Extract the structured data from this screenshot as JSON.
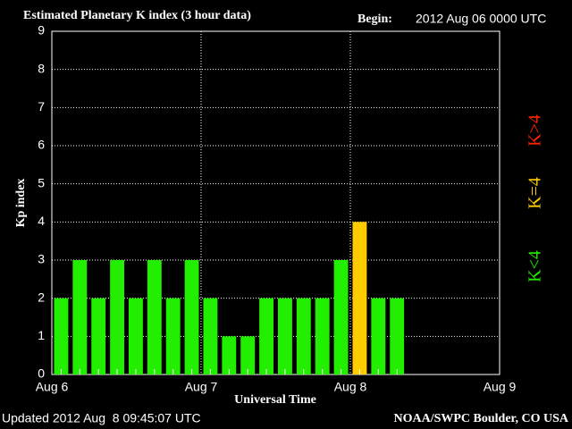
{
  "chart_data": {
    "type": "bar",
    "title": "Estimated Planetary K index (3 hour data)",
    "begin_label": "Begin:",
    "begin_value": "2012 Aug 06 0000 UTC",
    "y_label": "Kp index",
    "x_label": "Universal Time",
    "updated": "Updated 2012 Aug  8 09:45:07 UTC",
    "credit": "NOAA/SWPC Boulder, CO USA",
    "categories": [
      null,
      null,
      null,
      null,
      null,
      null,
      null,
      null,
      null,
      null,
      null,
      null,
      null,
      null,
      null,
      null,
      null,
      null,
      null
    ],
    "day_labels": [
      "Aug 6",
      "Aug 7",
      "Aug 8",
      "Aug 9"
    ],
    "series": [
      {
        "name": "Kp",
        "values": [
          2,
          3,
          2,
          3,
          2,
          3,
          2,
          3,
          2,
          1,
          1,
          2,
          2,
          2,
          2,
          3,
          4,
          2,
          2
        ],
        "colors": [
          "#22ee00",
          "#22ee00",
          "#22ee00",
          "#22ee00",
          "#22ee00",
          "#22ee00",
          "#22ee00",
          "#22ee00",
          "#22ee00",
          "#22ee00",
          "#22ee00",
          "#22ee00",
          "#22ee00",
          "#22ee00",
          "#22ee00",
          "#22ee00",
          "#ffcc00",
          "#22ee00",
          "#22ee00"
        ]
      }
    ],
    "legend": [
      {
        "label": "K<4",
        "color": "#22ee00"
      },
      {
        "label": "K=4",
        "color": "#ffcc00"
      },
      {
        "label": "K>4",
        "color": "#ff2200"
      }
    ],
    "ylim": [
      0,
      9
    ],
    "yticks": [
      0,
      1,
      2,
      3,
      4,
      5,
      6,
      7,
      8,
      9
    ],
    "grid": true
  }
}
